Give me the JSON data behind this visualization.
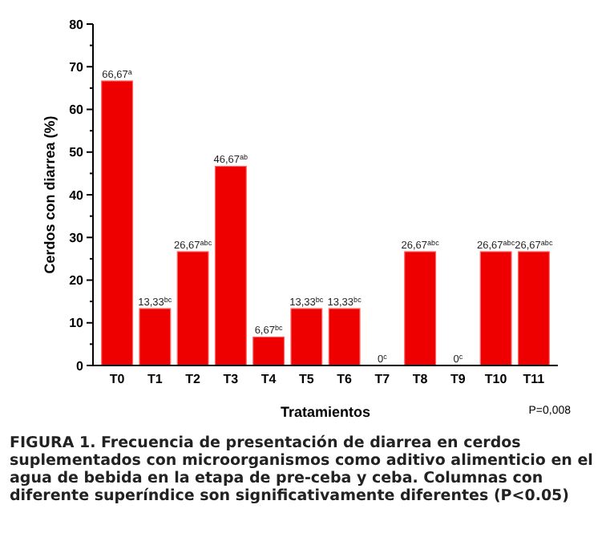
{
  "chart_data": {
    "type": "bar",
    "xlabel": "Tratamientos",
    "ylabel": "Cerdos con diarrea (%)",
    "categories": [
      "T0",
      "T1",
      "T2",
      "T3",
      "T4",
      "T5",
      "T6",
      "T7",
      "T8",
      "T9",
      "T10",
      "T11"
    ],
    "values": [
      66.67,
      13.33,
      26.67,
      46.67,
      6.67,
      13.33,
      13.33,
      0,
      26.67,
      0,
      26.67,
      26.67
    ],
    "value_labels": [
      "66,67$^{a}$",
      "13,33$^{bc}$",
      "26,67$^{abc}$",
      "46,67$^{ab}$",
      "6,67$^{bc}$",
      "13,33$^{bc}$",
      "13,33$^{bc}$",
      "0$^{c}$",
      "26,67$^{abc}$",
      "0$^{c}$",
      "26,67$^{abc}$",
      "26,67$^{abc}$"
    ],
    "color": "#ee0000",
    "ylim": [
      0,
      80
    ],
    "yticks": [
      0,
      10,
      20,
      30,
      40,
      50,
      60,
      70,
      80
    ],
    "grid": false,
    "annotations": [
      "P=0,008",
      "FIGURA 1. Frecuencia de presentación de diarrea en cerdos suplementados con microorganismos como aditivo alimenticio en el agua de bebida en la etapa de pre-ceba y ceba. Columnas con diferente superíndice son significativamente diferentes (P<0.05)"
    ]
  }
}
